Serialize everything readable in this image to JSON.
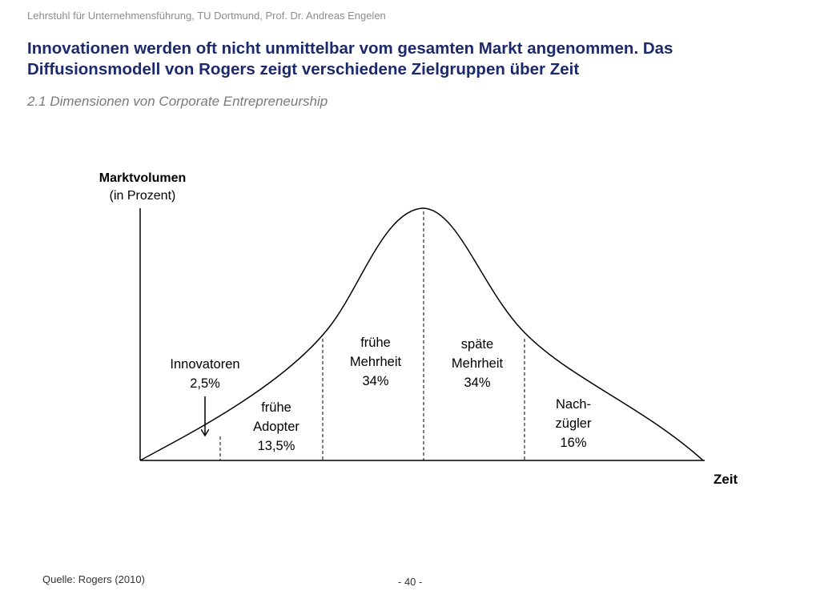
{
  "header": {
    "text": "Lehrstuhl für Unternehmensführung, TU Dortmund,  Prof. Dr. Andreas Engelen"
  },
  "slide": {
    "title": "Innovationen werden oft nicht unmittelbar vom gesamten Markt angenommen. Das Diffusionsmodell von Rogers zeigt verschiedene Zielgruppen über Zeit",
    "subtitle": "2.1 Dimensionen von Corporate Entrepreneurship"
  },
  "diagram": {
    "y_axis": {
      "label": "Marktvolumen",
      "unit": "(in Prozent)"
    },
    "x_axis": {
      "label": "Zeit"
    },
    "segments": [
      {
        "line1": "Innovatoren",
        "line2": "2,5%"
      },
      {
        "line1": "frühe",
        "line2": "Adopter",
        "line3": "13,5%"
      },
      {
        "line1": "frühe",
        "line2": "Mehrheit",
        "line3": "34%"
      },
      {
        "line1": "späte",
        "line2": "Mehrheit",
        "line3": "34%"
      },
      {
        "line1": "Nach-",
        "line2": "zügler",
        "line3": "16%"
      }
    ]
  },
  "footer": {
    "source": "Quelle: Rogers (2010)",
    "page": "- 40 -"
  }
}
